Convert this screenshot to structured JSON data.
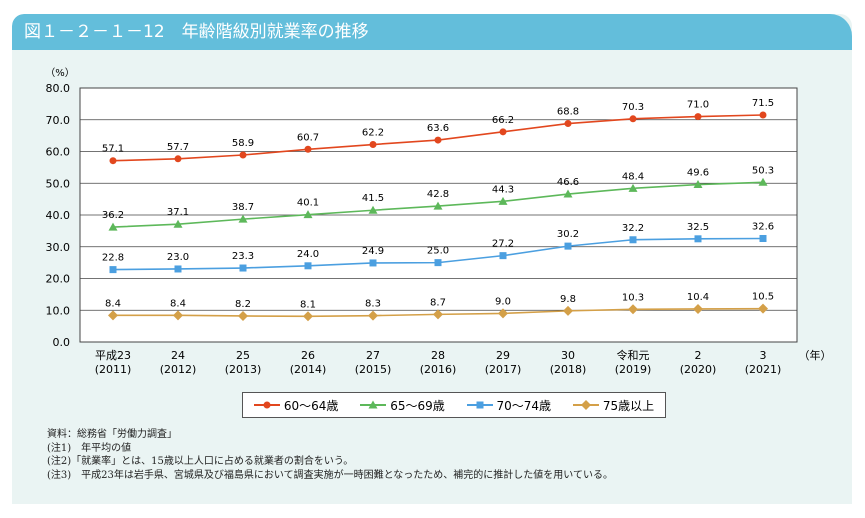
{
  "title": "図１－２－１－12　年齢階級別就業率の推移",
  "chart_data": {
    "type": "line",
    "title": "図１－２－１－12　年齢階級別就業率の推移",
    "ylabel": "（%）",
    "xlabel": "（年）",
    "ylim": [
      0,
      80
    ],
    "yticks": [
      "0.0",
      "10.0",
      "20.0",
      "30.0",
      "40.0",
      "50.0",
      "60.0",
      "70.0",
      "80.0"
    ],
    "grid": true,
    "legend_position": "bottom",
    "categories": [
      [
        "平成23",
        "(2011)"
      ],
      [
        "24",
        "(2012)"
      ],
      [
        "25",
        "(2013)"
      ],
      [
        "26",
        "(2014)"
      ],
      [
        "27",
        "(2015)"
      ],
      [
        "28",
        "(2016)"
      ],
      [
        "29",
        "(2017)"
      ],
      [
        "30",
        "(2018)"
      ],
      [
        "令和元",
        "(2019)"
      ],
      [
        "2",
        "(2020)"
      ],
      [
        "3",
        "(2021)"
      ]
    ],
    "series": [
      {
        "name": "60～64歳",
        "color": "#e2471e",
        "marker": "circle",
        "values": [
          57.1,
          57.7,
          58.9,
          60.7,
          62.2,
          63.6,
          66.2,
          68.8,
          70.3,
          71.0,
          71.5
        ]
      },
      {
        "name": "65～69歳",
        "color": "#5db85a",
        "marker": "triangle",
        "values": [
          36.2,
          37.1,
          38.7,
          40.1,
          41.5,
          42.8,
          44.3,
          46.6,
          48.4,
          49.6,
          50.3
        ]
      },
      {
        "name": "70～74歳",
        "color": "#4b9fe0",
        "marker": "square",
        "values": [
          22.8,
          23.0,
          23.3,
          24.0,
          24.9,
          25.0,
          27.2,
          30.2,
          32.2,
          32.5,
          32.6
        ]
      },
      {
        "name": "75歳以上",
        "color": "#d4a048",
        "marker": "diamond",
        "values": [
          8.4,
          8.4,
          8.2,
          8.1,
          8.3,
          8.7,
          9.0,
          9.8,
          10.3,
          10.4,
          10.5
        ]
      }
    ]
  },
  "notes": [
    "資料：総務省「労働力調査」",
    "(注1)　年平均の値",
    "(注2)「就業率」とは、15歳以上人口に占める就業者の割合をいう。",
    "(注3)　平成23年は岩手県、宮城県及び福島県において調査実施が一時困難となったため、補完的に推計した値を用いている。"
  ]
}
